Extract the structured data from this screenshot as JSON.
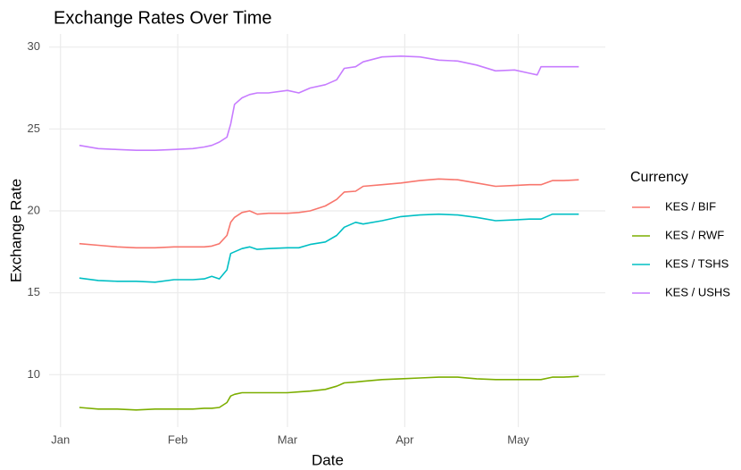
{
  "chart_data": {
    "type": "line",
    "title": "Exchange Rates Over Time",
    "x_label": "Date",
    "y_label": "Exchange Rate",
    "legend_title": "Currency",
    "legend_position": "right",
    "grid": true,
    "x": [
      5,
      10,
      15,
      20,
      25,
      30,
      35,
      38,
      40,
      42,
      44,
      45,
      46,
      48,
      50,
      52,
      55,
      60,
      63,
      66,
      70,
      73,
      75,
      78,
      80,
      85,
      90,
      95,
      100,
      105,
      110,
      115,
      120,
      124,
      126,
      127,
      130,
      133,
      137
    ],
    "xlim": [
      -3,
      144
    ],
    "xticks": [
      {
        "value": 0,
        "label": "Jan"
      },
      {
        "value": 31,
        "label": "Feb"
      },
      {
        "value": 60,
        "label": "Mar"
      },
      {
        "value": 91,
        "label": "Apr"
      },
      {
        "value": 121,
        "label": "May"
      }
    ],
    "ylim": [
      6.8,
      30.8
    ],
    "yticks": [
      10,
      15,
      20,
      25,
      30
    ],
    "series": [
      {
        "name": "KES / BIF",
        "color": "#F8766D",
        "values": [
          18.0,
          17.9,
          17.8,
          17.75,
          17.75,
          17.8,
          17.8,
          17.8,
          17.85,
          18.0,
          18.5,
          19.3,
          19.6,
          19.9,
          20.0,
          19.8,
          19.85,
          19.85,
          19.9,
          20.0,
          20.3,
          20.7,
          21.15,
          21.2,
          21.5,
          21.6,
          21.7,
          21.85,
          21.95,
          21.9,
          21.7,
          21.5,
          21.55,
          21.6,
          21.6,
          21.6,
          21.85,
          21.85,
          21.9
        ]
      },
      {
        "name": "KES / RWF",
        "color": "#7CAE00",
        "values": [
          8.0,
          7.9,
          7.9,
          7.85,
          7.9,
          7.9,
          7.9,
          7.95,
          7.95,
          8.0,
          8.3,
          8.7,
          8.8,
          8.9,
          8.9,
          8.9,
          8.9,
          8.9,
          8.95,
          9.0,
          9.1,
          9.3,
          9.5,
          9.55,
          9.6,
          9.7,
          9.75,
          9.8,
          9.85,
          9.85,
          9.75,
          9.7,
          9.7,
          9.7,
          9.7,
          9.7,
          9.85,
          9.85,
          9.9
        ]
      },
      {
        "name": "KES / TSHS",
        "color": "#00BFC4",
        "values": [
          15.9,
          15.75,
          15.7,
          15.7,
          15.65,
          15.8,
          15.8,
          15.85,
          16.0,
          15.85,
          16.4,
          17.4,
          17.5,
          17.7,
          17.8,
          17.65,
          17.7,
          17.75,
          17.75,
          17.95,
          18.1,
          18.5,
          19.0,
          19.3,
          19.2,
          19.4,
          19.65,
          19.75,
          19.8,
          19.75,
          19.6,
          19.4,
          19.45,
          19.5,
          19.5,
          19.5,
          19.8,
          19.8,
          19.8
        ]
      },
      {
        "name": "KES / USHS",
        "color": "#C77CFF",
        "values": [
          24.0,
          23.8,
          23.75,
          23.7,
          23.7,
          23.75,
          23.8,
          23.9,
          24.0,
          24.2,
          24.5,
          25.3,
          26.5,
          26.9,
          27.1,
          27.2,
          27.2,
          27.35,
          27.2,
          27.5,
          27.7,
          28.0,
          28.7,
          28.8,
          29.1,
          29.4,
          29.45,
          29.4,
          29.2,
          29.15,
          28.9,
          28.55,
          28.6,
          28.4,
          28.3,
          28.8,
          28.8,
          28.8,
          28.8
        ]
      }
    ]
  }
}
